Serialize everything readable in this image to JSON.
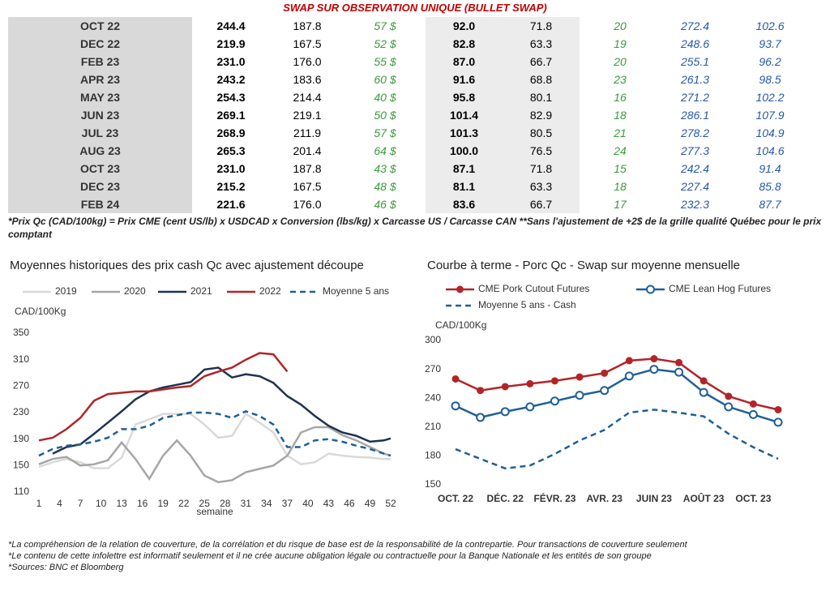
{
  "table": {
    "title": "SWAP SUR OBSERVATION UNIQUE (BULLET SWAP)",
    "rows": [
      [
        "OCT 22",
        "244.4",
        "187.8",
        "57 $",
        "92.0",
        "71.8",
        "20",
        "272.4",
        "102.6"
      ],
      [
        "DEC 22",
        "219.9",
        "167.5",
        "52 $",
        "82.8",
        "63.3",
        "19",
        "248.6",
        "93.7"
      ],
      [
        "FEB 23",
        "231.0",
        "176.0",
        "55 $",
        "87.0",
        "66.7",
        "20",
        "255.1",
        "96.2"
      ],
      [
        "APR 23",
        "243.2",
        "183.6",
        "60 $",
        "91.6",
        "68.8",
        "23",
        "261.3",
        "98.5"
      ],
      [
        "MAY 23",
        "254.3",
        "214.4",
        "40 $",
        "95.8",
        "80.1",
        "16",
        "271.2",
        "102.2"
      ],
      [
        "JUN 23",
        "269.1",
        "219.1",
        "50 $",
        "101.4",
        "82.9",
        "18",
        "286.1",
        "107.9"
      ],
      [
        "JUL 23",
        "268.9",
        "211.9",
        "57 $",
        "101.3",
        "80.5",
        "21",
        "278.2",
        "104.9"
      ],
      [
        "AUG 23",
        "265.3",
        "201.4",
        "64 $",
        "100.0",
        "76.5",
        "24",
        "277.3",
        "104.6"
      ],
      [
        "OCT 23",
        "231.0",
        "187.8",
        "43 $",
        "87.1",
        "71.8",
        "15",
        "242.4",
        "91.4"
      ],
      [
        "DEC 23",
        "215.2",
        "167.5",
        "48 $",
        "81.1",
        "63.3",
        "18",
        "227.4",
        "85.8"
      ],
      [
        "FEB 24",
        "221.6",
        "176.0",
        "46 $",
        "83.6",
        "66.7",
        "17",
        "232.3",
        "87.7"
      ]
    ],
    "footnote": "*Prix Qc (CAD/100kg) = Prix CME (cent US/lb) x USDCAD x Conversion (lbs/kg) x Carcasse US / Carcasse CAN **Sans l'ajustement de +2$ de la grille qualité Québec pour le prix comptant"
  },
  "chart_data": [
    {
      "type": "line",
      "title": "Moyennes historiques des prix cash Qc avec ajustement découpe",
      "y_label": "CAD/100Kg",
      "x_label": "semaine",
      "x": [
        1,
        3,
        5,
        7,
        9,
        11,
        13,
        15,
        17,
        19,
        21,
        23,
        25,
        27,
        29,
        31,
        33,
        35,
        37,
        39,
        41,
        43,
        45,
        47,
        49,
        51,
        52
      ],
      "xlim": [
        1,
        52
      ],
      "xticks": [
        1,
        4,
        7,
        10,
        13,
        16,
        19,
        22,
        25,
        28,
        31,
        34,
        37,
        40,
        43,
        46,
        49,
        52
      ],
      "ylim": [
        110,
        350
      ],
      "yticks": [
        110,
        150,
        190,
        230,
        270,
        310,
        350
      ],
      "series": [
        {
          "name": "2019",
          "color": "#d9d9d9",
          "style": "solid",
          "values": [
            148,
            155,
            160,
            155,
            146,
            146,
            162,
            212,
            220,
            228,
            228,
            228,
            212,
            192,
            195,
            228,
            215,
            200,
            165,
            152,
            155,
            168,
            165,
            163,
            162,
            160,
            160
          ]
        },
        {
          "name": "2020",
          "color": "#a6a6a6",
          "style": "solid",
          "values": [
            152,
            160,
            163,
            150,
            152,
            158,
            185,
            160,
            130,
            165,
            188,
            165,
            135,
            125,
            128,
            140,
            145,
            150,
            165,
            200,
            208,
            208,
            196,
            188,
            178,
            168,
            165
          ]
        },
        {
          "name": "2021",
          "color": "#1f3251",
          "style": "solid",
          "values": [
            null,
            168,
            178,
            182,
            198,
            215,
            232,
            250,
            262,
            268,
            272,
            276,
            295,
            298,
            283,
            288,
            285,
            275,
            255,
            242,
            225,
            210,
            200,
            195,
            186,
            188,
            191
          ]
        },
        {
          "name": "2022",
          "color": "#b22428",
          "style": "solid",
          "values": [
            188,
            192,
            205,
            222,
            248,
            258,
            260,
            262,
            262,
            265,
            268,
            270,
            285,
            292,
            298,
            310,
            320,
            318,
            292,
            null,
            null,
            null,
            null,
            null,
            null,
            null,
            null
          ]
        },
        {
          "name": "Moyenne 5 ans",
          "color": "#1f5f96",
          "style": "dashed",
          "values": [
            165,
            175,
            180,
            182,
            186,
            192,
            205,
            205,
            210,
            222,
            226,
            230,
            230,
            228,
            222,
            232,
            225,
            212,
            178,
            178,
            188,
            190,
            186,
            180,
            175,
            168,
            165
          ]
        }
      ]
    },
    {
      "type": "line",
      "title": "Courbe à terme - Porc Qc - Swap sur moyenne mensuelle",
      "y_label": "CAD/100Kg",
      "categories": [
        "OCT. 22",
        null,
        "DÉC. 22",
        null,
        "FÉVR. 23",
        null,
        "AVR. 23",
        null,
        "JUIN 23",
        null,
        "AOÛT 23",
        null,
        "OCT. 23",
        null
      ],
      "ylim": [
        150,
        300
      ],
      "yticks": [
        150,
        180,
        210,
        240,
        270,
        300
      ],
      "series": [
        {
          "name": "CME Pork Cutout Futures",
          "color": "#b22428",
          "style": "solid",
          "marker": "filled",
          "values": [
            260,
            248,
            252,
            255,
            258,
            262,
            266,
            279,
            281,
            277,
            258,
            242,
            234,
            228
          ]
        },
        {
          "name": "CME Lean Hog Futures",
          "color": "#1f5f96",
          "style": "solid",
          "marker": "hollow",
          "values": [
            232,
            220,
            226,
            231,
            237,
            243,
            248,
            263,
            270,
            267,
            246,
            231,
            223,
            215
          ]
        },
        {
          "name": "Moyenne 5 ans - Cash",
          "color": "#1f5f96",
          "style": "dashed",
          "values": [
            187,
            177,
            167,
            170,
            182,
            196,
            207,
            225,
            228,
            225,
            221,
            203,
            189,
            177
          ]
        }
      ]
    }
  ],
  "notes": [
    "*La compréhension de la relation de couverture, de la corrélation et du risque de base est de la responsabilité de la contrepartie. Pour transactions de couverture seulement",
    "*Le contenu de cette infolettre est informatif seulement et il ne crée aucune obligation légale ou contractuelle pour la Banque Nationale et les entités de son groupe",
    "*Sources: BNC et Bloomberg"
  ]
}
